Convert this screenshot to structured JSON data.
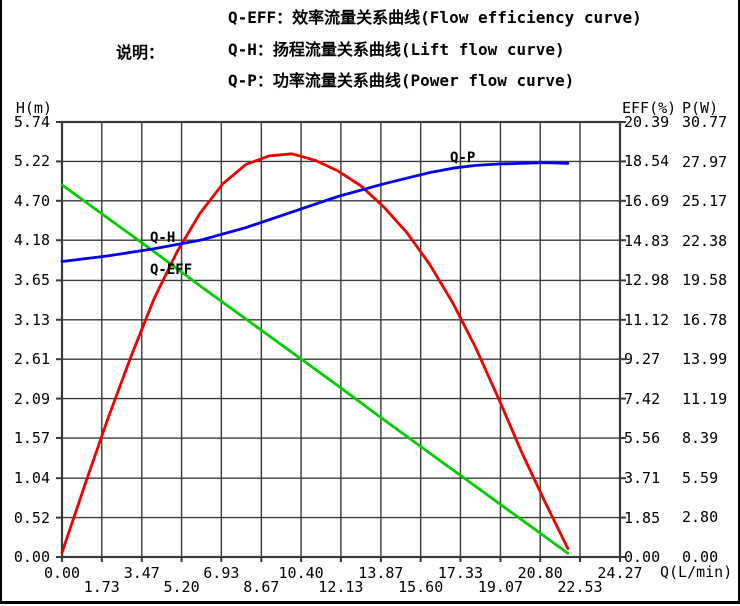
{
  "legend": {
    "intro": "说明：",
    "lines": [
      "Q-EFF：效率流量关系曲线(Flow efficiency curve)",
      "Q-H：扬程流量关系曲线(Lift flow curve)",
      "Q-P：功率流量关系曲线(Power flow curve)"
    ]
  },
  "chart_data": {
    "type": "line",
    "title": "",
    "grid": true,
    "x_axis": {
      "label": "Q(L/min)",
      "range": [
        0,
        24.27
      ],
      "ticks": [
        "0.00",
        "1.73",
        "3.47",
        "5.20",
        "6.93",
        "8.67",
        "10.40",
        "12.13",
        "13.87",
        "15.60",
        "17.33",
        "19.07",
        "20.80",
        "22.53",
        "24.27"
      ]
    },
    "y_axis_left": {
      "label": "H(m)",
      "range": [
        0,
        5.74
      ],
      "ticks": [
        "5.74",
        "5.22",
        "4.70",
        "4.18",
        "3.65",
        "3.13",
        "2.61",
        "2.09",
        "1.57",
        "1.04",
        "0.52",
        "0.00"
      ]
    },
    "y_axis_right_1": {
      "label": "EFF(%)",
      "range": [
        0,
        20.39
      ],
      "ticks": [
        "20.39",
        "18.54",
        "16.69",
        "14.83",
        "12.98",
        "11.12",
        "9.27",
        "7.42",
        "5.56",
        "3.71",
        "1.85",
        "0.00"
      ]
    },
    "y_axis_right_2": {
      "label": "P(W)",
      "range": [
        0,
        30.77
      ],
      "ticks": [
        "30.77",
        "27.97",
        "25.17",
        "22.38",
        "19.58",
        "16.78",
        "13.99",
        "11.19",
        "8.39",
        "5.59",
        "2.80",
        "0.00"
      ]
    },
    "series": [
      {
        "name": "Q-H",
        "axis": "H",
        "color": "#00cc00",
        "x": [
          0,
          2,
          4,
          6,
          8,
          10,
          12,
          14,
          16,
          18,
          20,
          22
        ],
        "y": [
          4.91,
          4.47,
          4.03,
          3.58,
          3.14,
          2.7,
          2.26,
          1.81,
          1.37,
          0.93,
          0.49,
          0.05
        ]
      },
      {
        "name": "Q-EFF",
        "axis": "EFF",
        "color": "#ee0000",
        "x": [
          0,
          1,
          2,
          3,
          4,
          5,
          6,
          7,
          8,
          9,
          10,
          11,
          12,
          13,
          14,
          15,
          16,
          17,
          18,
          19,
          20,
          21,
          22
        ],
        "y": [
          0.2,
          3.4,
          6.5,
          9.4,
          12.1,
          14.3,
          16.1,
          17.5,
          18.4,
          18.8,
          18.9,
          18.6,
          18.1,
          17.4,
          16.4,
          15.2,
          13.7,
          11.9,
          9.8,
          7.4,
          4.9,
          2.6,
          0.4
        ]
      },
      {
        "name": "Q-P",
        "axis": "P",
        "color": "#0000ee",
        "x": [
          0,
          2,
          4,
          6,
          8,
          10,
          12,
          14,
          16,
          17,
          18,
          19,
          20,
          21,
          22
        ],
        "y": [
          20.9,
          21.3,
          21.8,
          22.4,
          23.3,
          24.4,
          25.5,
          26.4,
          27.2,
          27.5,
          27.7,
          27.8,
          27.85,
          27.9,
          27.85
        ]
      }
    ],
    "colors": {
      "grid": "#3a3a3a",
      "text": "#000000",
      "background": "#ffffff"
    }
  }
}
